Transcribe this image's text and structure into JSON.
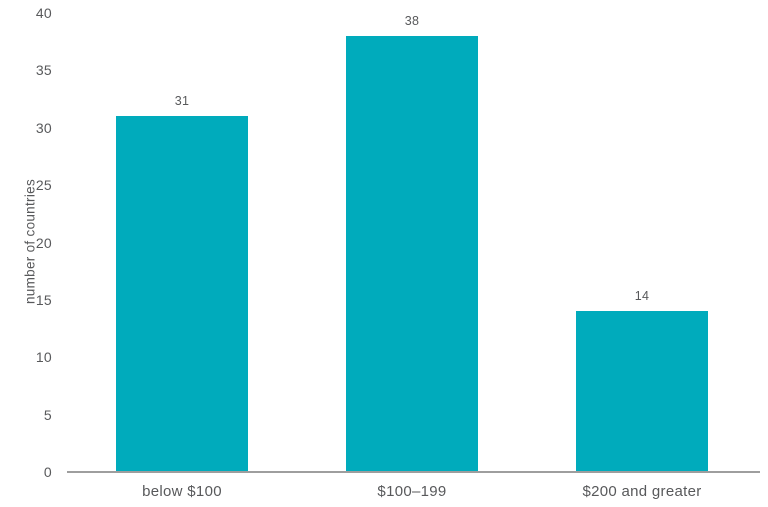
{
  "chart_data": {
    "type": "bar",
    "categories": [
      "below $100",
      "$100–199",
      "$200 and greater"
    ],
    "values": [
      31,
      38,
      14
    ],
    "title": "",
    "xlabel": "",
    "ylabel": "number of countries",
    "ylim": [
      0,
      40
    ],
    "ytick_step": 5,
    "grid": false,
    "legend": false,
    "bar_color": "#00abbc",
    "text_color": "#58595b",
    "axis_line_color": "#9e9e9e"
  }
}
